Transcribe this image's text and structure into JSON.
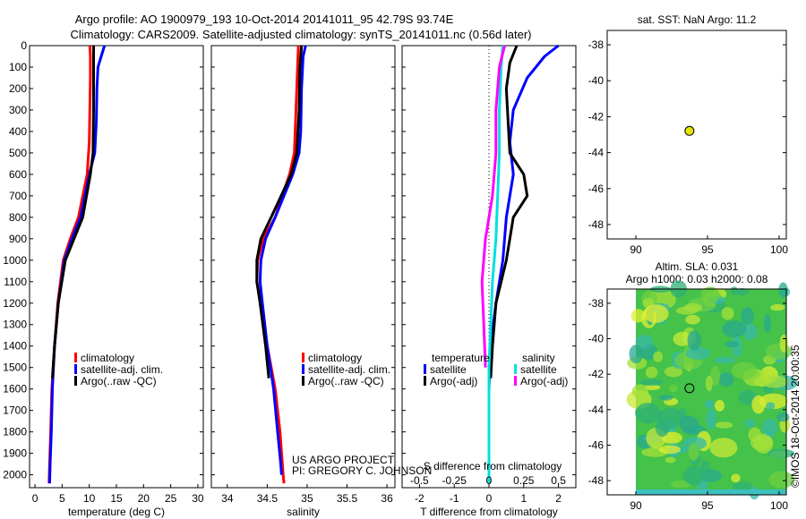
{
  "title": {
    "line1": "Argo profile: AO 1900979_193 10-Oct-2014 20141011_95 42.79S 93.74E",
    "line2": "Climatology: CARS2009. Satellite-adjusted climatology: synTS_20141011.nc (0.56d later)"
  },
  "colors": {
    "clim": "#ff0000",
    "sat": "#0000ff",
    "argo": "#000000",
    "sal_sat": "#00e0e0",
    "sal_argo": "#ff00ff",
    "marker": "#e5e500"
  },
  "credit": {
    "line1": "US ARGO PROJECT",
    "line2": "PI: GREGORY C. JOHNSON"
  },
  "side_label": "©IMOS 18-Oct-2014 20:00:35",
  "chart_data": [
    {
      "type": "line",
      "xlabel": "temperature (deg C)",
      "xlim": [
        -1,
        31
      ],
      "ylim": [
        2060,
        0
      ],
      "x_ticks": [
        0,
        5,
        10,
        15,
        20,
        25,
        30
      ],
      "y_ticks": [
        0,
        100,
        200,
        300,
        400,
        500,
        600,
        700,
        800,
        900,
        1000,
        1100,
        1200,
        1300,
        1400,
        1500,
        1600,
        1700,
        1800,
        1900,
        2000
      ],
      "legend": [
        "climatology",
        "satellite-adj. clim.",
        "Argo(..raw -QC)"
      ],
      "legend_position": "lower-middle",
      "series": [
        {
          "name": "climatology",
          "color": "#ff0000",
          "points": [
            [
              10.1,
              0
            ],
            [
              10.2,
              50
            ],
            [
              10.2,
              150
            ],
            [
              10.1,
              300
            ],
            [
              10,
              450
            ],
            [
              9.6,
              600
            ],
            [
              8,
              800
            ],
            [
              6.5,
              900
            ],
            [
              5.2,
              1000
            ],
            [
              4.2,
              1200
            ],
            [
              3.6,
              1400
            ],
            [
              3.1,
              1600
            ],
            [
              2.9,
              1800
            ],
            [
              2.7,
              1950
            ],
            [
              2.6,
              2040
            ]
          ]
        },
        {
          "name": "satellite-adj. clim.",
          "color": "#0000ff",
          "points": [
            [
              12.8,
              0
            ],
            [
              12.2,
              50
            ],
            [
              11.6,
              100
            ],
            [
              11.4,
              200
            ],
            [
              11.3,
              350
            ],
            [
              11.0,
              500
            ],
            [
              10,
              600
            ],
            [
              8.4,
              800
            ],
            [
              6.8,
              900
            ],
            [
              5.4,
              1000
            ],
            [
              4.3,
              1200
            ],
            [
              3.6,
              1400
            ],
            [
              3.2,
              1600
            ],
            [
              3.0,
              1800
            ],
            [
              2.8,
              1950
            ],
            [
              2.7,
              2040
            ]
          ]
        },
        {
          "name": "Argo(..raw -QC)",
          "color": "#000000",
          "points": [
            [
              10.8,
              0
            ],
            [
              10.8,
              100
            ],
            [
              10.8,
              300
            ],
            [
              10.7,
              500
            ],
            [
              10.2,
              600
            ],
            [
              8.8,
              800
            ],
            [
              7.2,
              900
            ],
            [
              5.6,
              1000
            ],
            [
              4.3,
              1200
            ],
            [
              3.6,
              1400
            ],
            [
              3.2,
              1550
            ]
          ]
        }
      ]
    },
    {
      "type": "line",
      "xlabel": "salinity",
      "xlim": [
        33.8,
        36.1
      ],
      "ylim": [
        2060,
        0
      ],
      "x_ticks": [
        34,
        34.5,
        35,
        35.5,
        36
      ],
      "legend": [
        "climatology",
        "satellite-adj. clim.",
        "Argo(..raw -QC)"
      ],
      "legend_position": "lower-right",
      "series": [
        {
          "name": "climatology",
          "color": "#ff0000",
          "points": [
            [
              34.89,
              0
            ],
            [
              34.88,
              100
            ],
            [
              34.86,
              300
            ],
            [
              34.84,
              500
            ],
            [
              34.78,
              600
            ],
            [
              34.6,
              800
            ],
            [
              34.45,
              900
            ],
            [
              34.38,
              1000
            ],
            [
              34.37,
              1100
            ],
            [
              34.42,
              1200
            ],
            [
              34.5,
              1400
            ],
            [
              34.6,
              1600
            ],
            [
              34.66,
              1800
            ],
            [
              34.7,
              2000
            ],
            [
              34.71,
              2040
            ]
          ]
        },
        {
          "name": "satellite-adj. clim.",
          "color": "#0000ff",
          "points": [
            [
              34.98,
              0
            ],
            [
              34.95,
              50
            ],
            [
              34.93,
              200
            ],
            [
              34.92,
              400
            ],
            [
              34.9,
              500
            ],
            [
              34.82,
              600
            ],
            [
              34.6,
              800
            ],
            [
              34.48,
              900
            ],
            [
              34.42,
              1000
            ],
            [
              34.41,
              1100
            ],
            [
              34.44,
              1200
            ],
            [
              34.5,
              1400
            ],
            [
              34.58,
              1600
            ],
            [
              34.63,
              1800
            ],
            [
              34.67,
              1950
            ],
            [
              34.68,
              2000
            ]
          ]
        },
        {
          "name": "Argo(..raw -QC)",
          "color": "#000000",
          "points": [
            [
              34.93,
              0
            ],
            [
              34.91,
              100
            ],
            [
              34.9,
              300
            ],
            [
              34.87,
              500
            ],
            [
              34.8,
              600
            ],
            [
              34.55,
              800
            ],
            [
              34.42,
              900
            ],
            [
              34.37,
              1000
            ],
            [
              34.37,
              1100
            ],
            [
              34.41,
              1200
            ],
            [
              34.48,
              1400
            ],
            [
              34.52,
              1550
            ]
          ]
        }
      ]
    },
    {
      "type": "line",
      "xlabel": "T difference from climatology",
      "xlabel_top": "S difference from climatology",
      "xlim": [
        -2.5,
        2.5
      ],
      "ylim": [
        2060,
        0
      ],
      "x_ticks": [
        -2,
        -1,
        0,
        1,
        2
      ],
      "x_ticks_top": [
        -0.5,
        -0.25,
        0,
        0.25,
        0.5
      ],
      "legend_titles": [
        "temperature",
        "salinity"
      ],
      "legend": [
        "satellite",
        "Argo(-adj)",
        "satellite",
        "Argo(-adj)"
      ],
      "legend_position": "lower",
      "series": [
        {
          "name": "satellite",
          "group": "temperature",
          "color": "#0000ff",
          "points": [
            [
              2,
              0
            ],
            [
              1.6,
              50
            ],
            [
              1.1,
              150
            ],
            [
              0.7,
              300
            ],
            [
              0.6,
              450
            ],
            [
              0.7,
              600
            ],
            [
              0.6,
              700
            ],
            [
              0.5,
              800
            ],
            [
              0.4,
              1000
            ],
            [
              0.2,
              1200
            ],
            [
              0.05,
              1400
            ],
            [
              0,
              1600
            ],
            [
              0,
              1800
            ],
            [
              0,
              2040
            ]
          ]
        },
        {
          "name": "Argo(-adj)",
          "group": "temperature",
          "color": "#000000",
          "points": [
            [
              0.8,
              0
            ],
            [
              0.6,
              80
            ],
            [
              0.5,
              200
            ],
            [
              0.55,
              350
            ],
            [
              0.6,
              500
            ],
            [
              1.0,
              600
            ],
            [
              1.1,
              700
            ],
            [
              0.7,
              800
            ],
            [
              0.5,
              1000
            ],
            [
              0.2,
              1200
            ],
            [
              0.1,
              1400
            ],
            [
              0.05,
              1550
            ]
          ]
        },
        {
          "name": "satellite",
          "group": "salinity",
          "color": "#00e0e0",
          "points": [
            [
              0.4,
              0
            ],
            [
              0.35,
              100
            ],
            [
              0.3,
              300
            ],
            [
              0.3,
              500
            ],
            [
              0.25,
              700
            ],
            [
              0.2,
              900
            ],
            [
              0.1,
              1100
            ],
            [
              0.05,
              1300
            ],
            [
              0,
              1500
            ],
            [
              0,
              1800
            ],
            [
              0,
              2040
            ]
          ]
        },
        {
          "name": "Argo(-adj)",
          "group": "salinity",
          "color": "#ff00ff",
          "points": [
            [
              0.45,
              0
            ],
            [
              0.3,
              100
            ],
            [
              0.2,
              300
            ],
            [
              0.2,
              500
            ],
            [
              0.1,
              700
            ],
            [
              -0.1,
              900
            ],
            [
              -0.2,
              1100
            ],
            [
              -0.15,
              1300
            ],
            [
              -0.1,
              1500
            ]
          ]
        }
      ]
    },
    {
      "type": "scatter",
      "title": "sat. SST: NaN Argo: 11.2",
      "xlim": [
        88,
        100.5
      ],
      "ylim": [
        -48.8,
        -37.2
      ],
      "x_ticks": [
        90,
        95,
        100
      ],
      "y_ticks": [
        -38,
        -40,
        -42,
        -44,
        -46,
        -48
      ],
      "points": [
        {
          "x": 93.74,
          "y": -42.79
        }
      ]
    },
    {
      "type": "heatmap",
      "title_line1": "Altim. SLA: 0.031",
      "title_line2": "Argo h1000: 0.03 h2000: 0.08",
      "xlim": [
        88,
        100.5
      ],
      "ylim": [
        -48.8,
        -37.2
      ],
      "x_ticks": [
        90,
        95,
        100
      ],
      "y_ticks": [
        -38,
        -40,
        -42,
        -44,
        -46,
        -48
      ],
      "points": [
        {
          "x": 93.74,
          "y": -42.79
        }
      ]
    }
  ]
}
